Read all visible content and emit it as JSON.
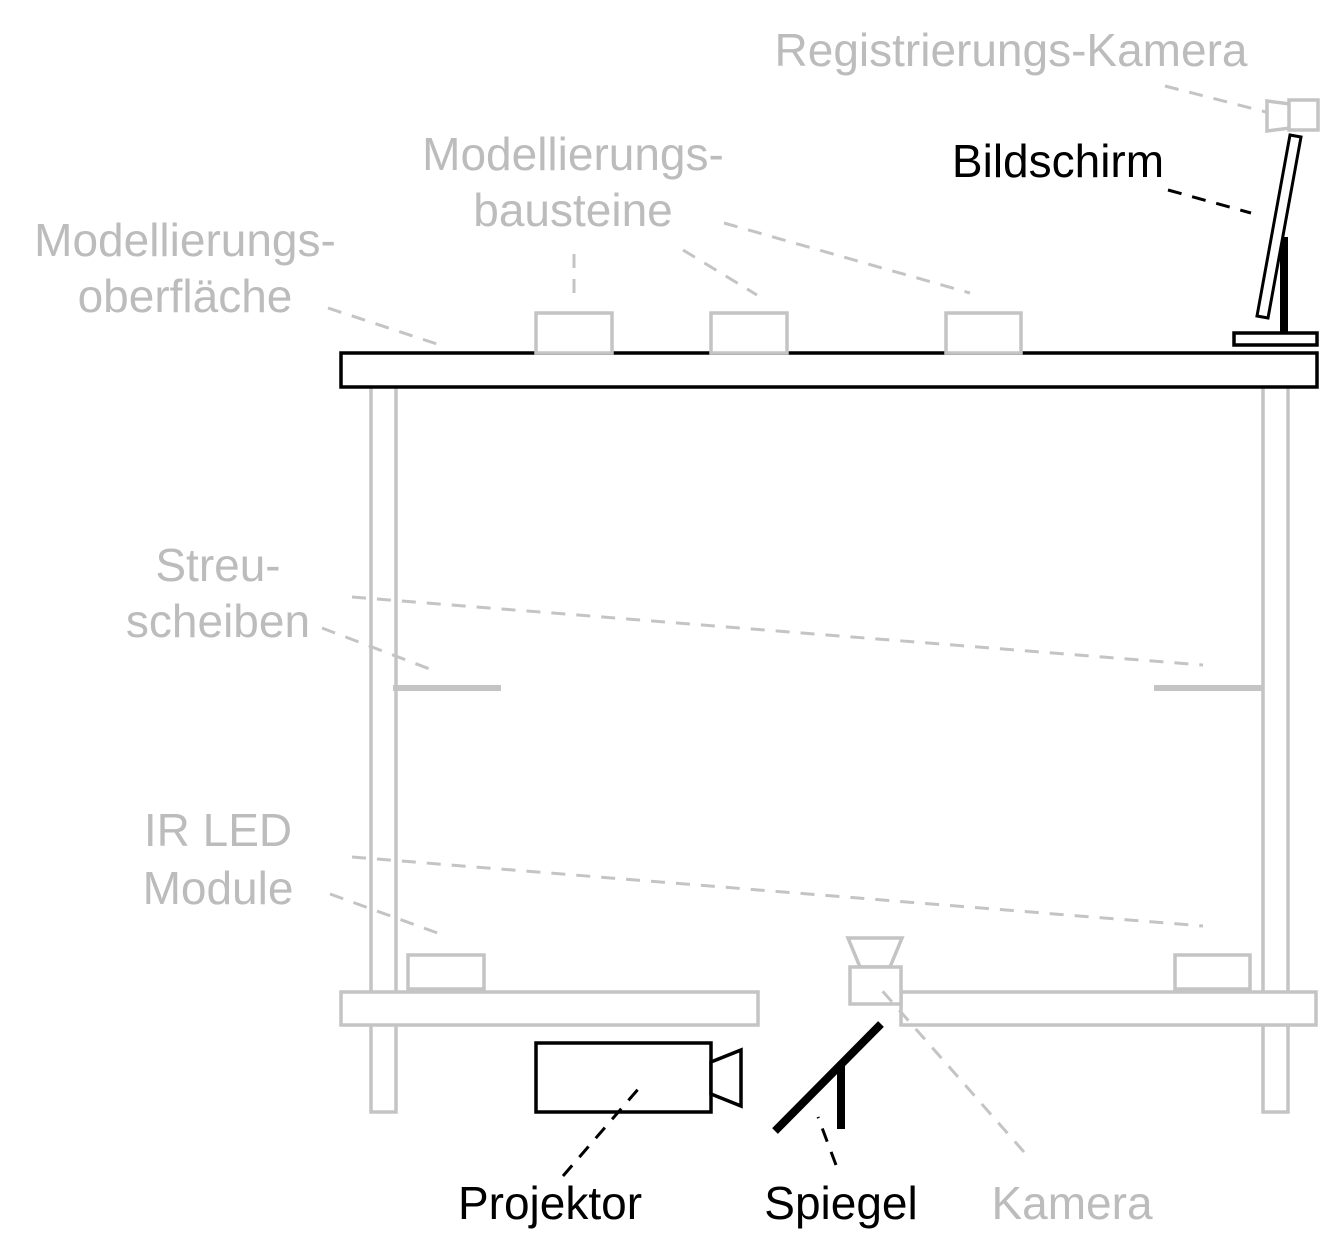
{
  "labels": {
    "registration_camera": "Registrierungs-Kamera",
    "screen": "Bildschirm",
    "blocks_line1": "Modellierungs-",
    "blocks_line2": "bausteine",
    "surface_line1": "Modellierungs-",
    "surface_line2": "oberfläche",
    "diffusers_line1": "Streu-",
    "diffusers_line2": "scheiben",
    "ir_line1": "IR LED",
    "ir_line2": "Module",
    "projector": "Projektor",
    "mirror": "Spiegel",
    "camera": "Kamera"
  },
  "colors": {
    "active": "#000000",
    "inactive": "#bcbcbc"
  }
}
